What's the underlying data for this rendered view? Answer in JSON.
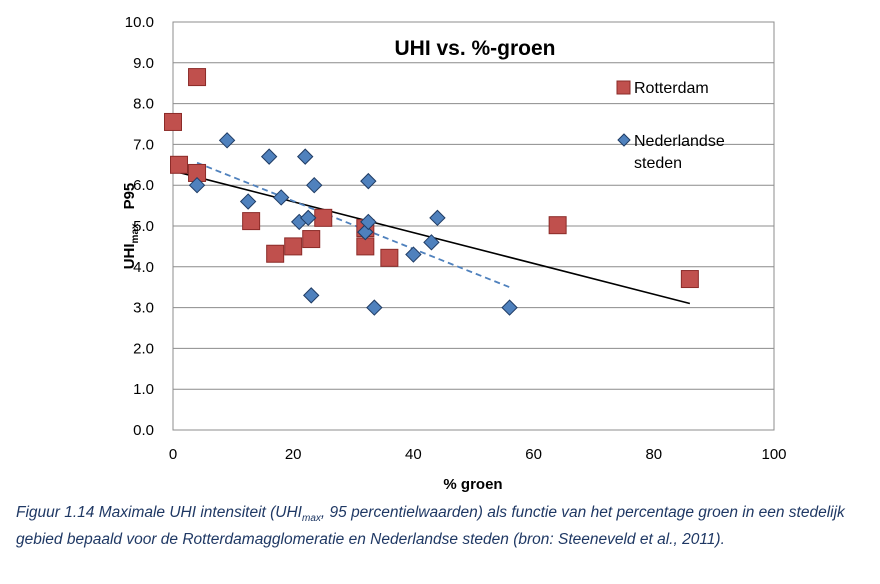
{
  "chart_data": {
    "type": "scatter",
    "title": "UHI vs. %-groen",
    "xlabel": "% groen",
    "ylabel": {
      "main": "UHI",
      "sub": "max",
      "suffix": "P95"
    },
    "xlim": [
      0,
      100
    ],
    "ylim": [
      0,
      10
    ],
    "x_ticks": [
      "0",
      "20",
      "40",
      "60",
      "80",
      "100"
    ],
    "y_ticks": [
      "0.0",
      "1.0",
      "2.0",
      "3.0",
      "4.0",
      "5.0",
      "6.0",
      "7.0",
      "8.0",
      "9.0",
      "10.0"
    ],
    "grid": "horizontal",
    "legend_position": "right",
    "series": [
      {
        "name": "Rotterdam",
        "marker": "square",
        "color": "#c0504d",
        "stroke": "#8b2b28",
        "points": [
          {
            "x": 0,
            "y": 7.55
          },
          {
            "x": 1,
            "y": 6.5
          },
          {
            "x": 4,
            "y": 8.65
          },
          {
            "x": 4,
            "y": 6.3
          },
          {
            "x": 13,
            "y": 5.12
          },
          {
            "x": 17,
            "y": 4.32
          },
          {
            "x": 20,
            "y": 4.5
          },
          {
            "x": 23,
            "y": 4.68
          },
          {
            "x": 25,
            "y": 5.2
          },
          {
            "x": 32,
            "y": 4.95
          },
          {
            "x": 32,
            "y": 4.5
          },
          {
            "x": 36,
            "y": 4.22
          },
          {
            "x": 64,
            "y": 5.02
          },
          {
            "x": 86,
            "y": 3.7
          }
        ]
      },
      {
        "name": "Nederlandse steden",
        "marker": "diamond",
        "color": "#4f81bd",
        "stroke": "#1f3b63",
        "points": [
          {
            "x": 4,
            "y": 6.0
          },
          {
            "x": 9,
            "y": 7.1
          },
          {
            "x": 12.5,
            "y": 5.6
          },
          {
            "x": 16,
            "y": 6.7
          },
          {
            "x": 18,
            "y": 5.7
          },
          {
            "x": 21,
            "y": 5.1
          },
          {
            "x": 22,
            "y": 6.7
          },
          {
            "x": 22.5,
            "y": 5.2
          },
          {
            "x": 23,
            "y": 3.3
          },
          {
            "x": 23.5,
            "y": 6.0
          },
          {
            "x": 32,
            "y": 4.85
          },
          {
            "x": 32.5,
            "y": 6.1
          },
          {
            "x": 32.5,
            "y": 5.1
          },
          {
            "x": 33.5,
            "y": 3.0
          },
          {
            "x": 40,
            "y": 4.3
          },
          {
            "x": 43,
            "y": 4.6
          },
          {
            "x": 44,
            "y": 5.2
          },
          {
            "x": 56,
            "y": 3.0
          }
        ]
      }
    ],
    "trendlines": [
      {
        "series": "Rotterdam",
        "style": "solid",
        "color": "#000000",
        "x": [
          0,
          86
        ],
        "y": [
          6.35,
          3.1
        ]
      },
      {
        "series": "Nederlandse steden",
        "style": "dashed",
        "color": "#4f81bd",
        "x": [
          4,
          56
        ],
        "y": [
          6.55,
          3.5
        ]
      }
    ]
  },
  "caption": {
    "prefix": "Figuur 1.14 Maximale UHI intensiteit (UHI",
    "sub": "max",
    "suffix": ", 95 percentielwaarden) als functie van het percentage groen in een stedelijk gebied bepaald voor de Rotterdamagglomeratie en Nederlandse steden (bron: Steeneveld et al., 2011)."
  }
}
